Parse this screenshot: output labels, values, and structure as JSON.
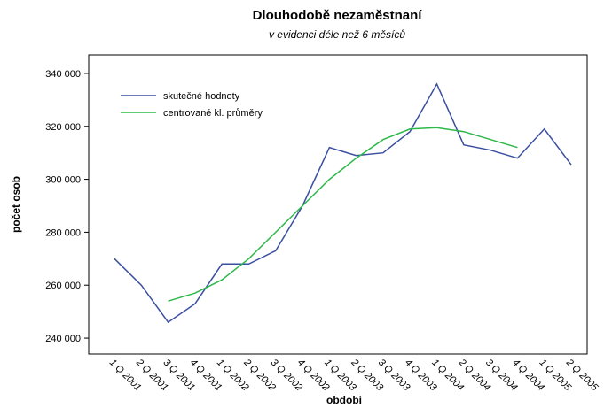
{
  "chart_data": {
    "type": "line",
    "title": "Dlouhodobě nezaměstnaní",
    "subtitle": "v evidenci déle než 6 měsíců",
    "x_label": "období",
    "y_label": "počet osob",
    "categories": [
      "1 Q 2001",
      "2 Q 2001",
      "3 Q 2001",
      "4 Q 2001",
      "1 Q 2002",
      "2 Q 2002",
      "3 Q 2002",
      "4 Q 2002",
      "1 Q 2003",
      "2 Q 2003",
      "3 Q 2003",
      "4 Q 2003",
      "1 Q 2004",
      "2 Q 2004",
      "3 Q 2004",
      "4 Q 2004",
      "1 Q 2005",
      "2 Q 2005"
    ],
    "series": [
      {
        "name": "skutečné hodnoty",
        "color": "#3a4fa0",
        "values": [
          270000,
          260000,
          246000,
          253000,
          268000,
          268000,
          273000,
          290000,
          312000,
          309000,
          310000,
          318000,
          336000,
          313000,
          311000,
          308000,
          319000,
          305500
        ]
      },
      {
        "name": "centrované kl. průměry",
        "color": "#2db84a",
        "values": [
          null,
          null,
          254000,
          257000,
          262000,
          270000,
          280000,
          290000,
          300000,
          308000,
          315000,
          319000,
          319500,
          318000,
          315000,
          312000,
          null,
          null
        ]
      }
    ],
    "ylim": [
      234000,
      347000
    ],
    "yticks": [
      {
        "value": 240000,
        "label": "240 000"
      },
      {
        "value": 260000,
        "label": "260 000"
      },
      {
        "value": 280000,
        "label": "280 000"
      },
      {
        "value": 300000,
        "label": "300 000"
      },
      {
        "value": 320000,
        "label": "320 000"
      },
      {
        "value": 340000,
        "label": "340 000"
      }
    ],
    "legend": "upper left",
    "grid": false
  }
}
